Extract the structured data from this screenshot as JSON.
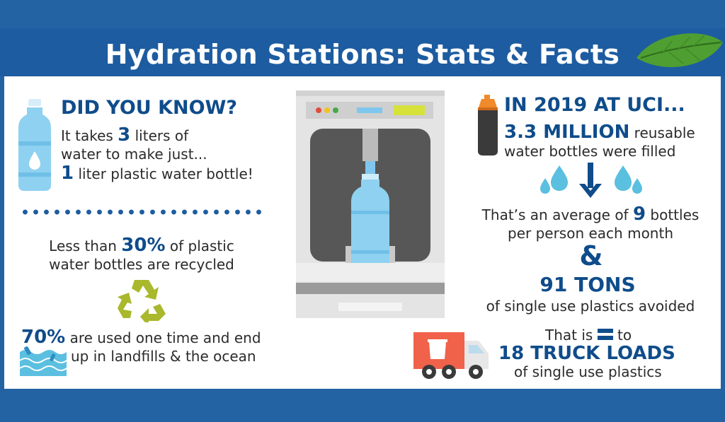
{
  "title": "Hydration Stations: Stats & Facts",
  "colors": {
    "brand_blue": "#1d5ca0",
    "text_navy": "#0f4c8a",
    "water_blue": "#8fd1f0",
    "truck_red": "#f0624a",
    "recycle_green": "#a9b82c"
  },
  "left": {
    "heading": "DID YOU KNOW?",
    "line1_pre": "It takes ",
    "line1_num": "3",
    "line1_post": " liters of",
    "line2": "water to make just...",
    "line3_num": "1",
    "line3_post": " liter plastic water bottle!",
    "recycle_pre": "Less than ",
    "recycle_num": "30%",
    "recycle_post": " of plastic",
    "recycle_line2": "water bottles are recycled",
    "landfill_num": "70%",
    "landfill_post": " are used one time and end",
    "landfill_line2": "up in landfills & the ocean"
  },
  "right": {
    "heading": "IN 2019 AT UCI...",
    "million_num": "3.3 MILLION",
    "million_post": " reusable",
    "million_line2": "water bottles were filled",
    "avg_pre": "That’s an average of ",
    "avg_num": "9",
    "avg_post": " bottles",
    "avg_line2": "per person each month",
    "ampersand": "&",
    "tons": "91 TONS",
    "tons_line2": "of single use plastics avoided",
    "equal_pre": "That is ",
    "equal_post": " to",
    "trucks": "18 TRUCK LOADS",
    "trucks_line2": "of single use plastics"
  },
  "icons": [
    "water-bottle-icon",
    "leaf-icon",
    "recycle-icon",
    "ocean-waves-icon",
    "hydration-station-icon",
    "sport-bottle-icon",
    "water-drops-icon",
    "down-arrow-icon",
    "equals-icon",
    "truck-icon"
  ]
}
